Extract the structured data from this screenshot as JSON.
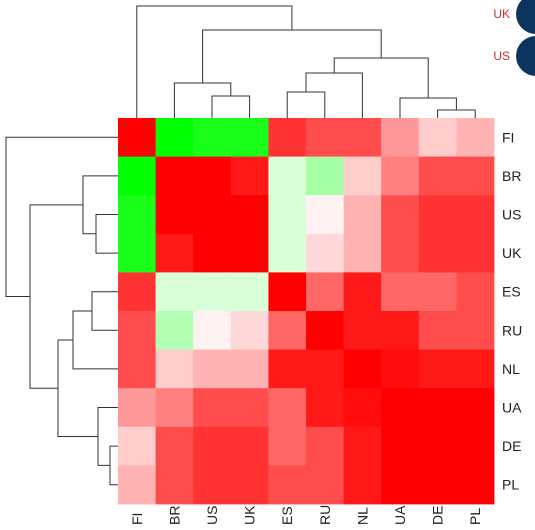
{
  "chart_data": {
    "type": "heatmap",
    "rows": [
      "FI",
      "BR",
      "US",
      "UK",
      "ES",
      "RU",
      "NL",
      "UA",
      "DE",
      "PL"
    ],
    "cols": [
      "FI",
      "BR",
      "US",
      "UK",
      "ES",
      "RU",
      "NL",
      "UA",
      "DE",
      "PL"
    ],
    "scale": "green (low) → white → red (high)",
    "matrix": [
      [
        1.0,
        -1.0,
        -0.9,
        -0.9,
        0.8,
        0.7,
        0.7,
        0.4,
        0.2,
        0.3
      ],
      [
        -1.0,
        1.0,
        1.0,
        0.9,
        -0.15,
        -0.35,
        0.2,
        0.5,
        0.7,
        0.7
      ],
      [
        -0.9,
        1.0,
        1.0,
        1.0,
        -0.15,
        0.05,
        0.3,
        0.7,
        0.8,
        0.8
      ],
      [
        -0.9,
        0.9,
        1.0,
        1.0,
        -0.15,
        0.15,
        0.3,
        0.7,
        0.8,
        0.8
      ],
      [
        0.8,
        -0.15,
        -0.15,
        -0.15,
        1.0,
        0.6,
        0.9,
        0.6,
        0.6,
        0.7
      ],
      [
        0.7,
        -0.3,
        0.05,
        0.15,
        0.6,
        1.0,
        0.9,
        0.9,
        0.7,
        0.7
      ],
      [
        0.7,
        0.2,
        0.3,
        0.3,
        0.9,
        0.9,
        1.0,
        0.95,
        0.9,
        0.9
      ],
      [
        0.4,
        0.5,
        0.7,
        0.7,
        0.6,
        0.9,
        0.95,
        1.0,
        1.0,
        1.0
      ],
      [
        0.2,
        0.7,
        0.8,
        0.8,
        0.6,
        0.7,
        0.9,
        1.0,
        1.0,
        1.0
      ],
      [
        0.3,
        0.7,
        0.8,
        0.8,
        0.7,
        0.7,
        0.9,
        1.0,
        1.0,
        1.0
      ]
    ],
    "side_legend": [
      {
        "label": "UK",
        "color": "#d03030"
      },
      {
        "label": "US",
        "color": "#d03030"
      }
    ],
    "marker_color": "#0d3560",
    "grid": false
  }
}
